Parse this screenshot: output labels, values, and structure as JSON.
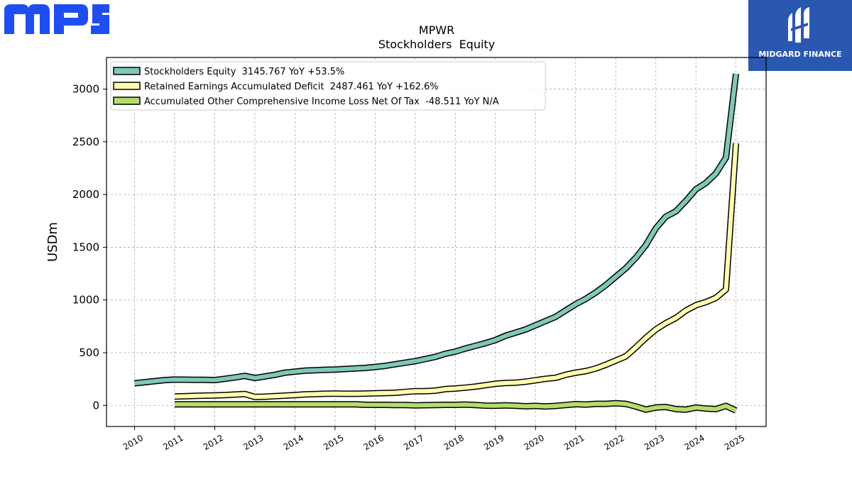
{
  "logos": {
    "left_text": "MPS",
    "left_color": "#1f4ef0",
    "right_text": "MIDGARD FINANCE",
    "right_bg": "#2a57b0"
  },
  "chart_data": {
    "type": "line",
    "title": "MPWR",
    "subtitle": "Stockholders  Equity",
    "ylabel": "USDm",
    "xlabel": "",
    "ylim": [
      -200,
      3300
    ],
    "xlim": [
      2009.3,
      2025.75
    ],
    "yticks": [
      0,
      500,
      1000,
      1500,
      2000,
      2500,
      3000
    ],
    "xticks": [
      "2010",
      "2011",
      "2012",
      "2013",
      "2014",
      "2015",
      "2016",
      "2017",
      "2018",
      "2019",
      "2020",
      "2021",
      "2022",
      "2023",
      "2024",
      "2025"
    ],
    "grid": true,
    "legend_position": "top-left",
    "series": [
      {
        "name": "Stockholders Equity  3145.767 YoY +53.5%",
        "color": "#7fc8b8",
        "points": [
          [
            2010.0,
            210
          ],
          [
            2010.25,
            220
          ],
          [
            2010.5,
            230
          ],
          [
            2010.75,
            240
          ],
          [
            2011.0,
            245
          ],
          [
            2011.25,
            244
          ],
          [
            2011.5,
            243
          ],
          [
            2011.75,
            242
          ],
          [
            2012.0,
            240
          ],
          [
            2012.25,
            252
          ],
          [
            2012.5,
            265
          ],
          [
            2012.75,
            280
          ],
          [
            2013.0,
            260
          ],
          [
            2013.25,
            275
          ],
          [
            2013.5,
            290
          ],
          [
            2013.75,
            310
          ],
          [
            2014.0,
            320
          ],
          [
            2014.25,
            330
          ],
          [
            2014.5,
            333
          ],
          [
            2014.75,
            338
          ],
          [
            2015.0,
            340
          ],
          [
            2015.25,
            345
          ],
          [
            2015.5,
            350
          ],
          [
            2015.75,
            355
          ],
          [
            2016.0,
            365
          ],
          [
            2016.25,
            375
          ],
          [
            2016.5,
            390
          ],
          [
            2016.75,
            405
          ],
          [
            2017.0,
            420
          ],
          [
            2017.25,
            440
          ],
          [
            2017.5,
            460
          ],
          [
            2017.75,
            490
          ],
          [
            2018.0,
            510
          ],
          [
            2018.25,
            540
          ],
          [
            2018.5,
            565
          ],
          [
            2018.75,
            590
          ],
          [
            2019.0,
            620
          ],
          [
            2019.25,
            660
          ],
          [
            2019.5,
            690
          ],
          [
            2019.75,
            720
          ],
          [
            2020.0,
            760
          ],
          [
            2020.25,
            800
          ],
          [
            2020.5,
            840
          ],
          [
            2020.75,
            900
          ],
          [
            2021.0,
            960
          ],
          [
            2021.25,
            1010
          ],
          [
            2021.5,
            1070
          ],
          [
            2021.75,
            1140
          ],
          [
            2022.0,
            1220
          ],
          [
            2022.25,
            1300
          ],
          [
            2022.5,
            1400
          ],
          [
            2022.75,
            1520
          ],
          [
            2023.0,
            1680
          ],
          [
            2023.25,
            1790
          ],
          [
            2023.5,
            1840
          ],
          [
            2023.75,
            1940
          ],
          [
            2024.0,
            2050
          ],
          [
            2024.25,
            2110
          ],
          [
            2024.5,
            2200
          ],
          [
            2024.75,
            2350
          ],
          [
            2025.0,
            3146
          ]
        ]
      },
      {
        "name": "Retained Earnings Accumulated Deficit  2487.461 YoY +162.6%",
        "color": "#fffcb0",
        "points": [
          [
            2011.0,
            85
          ],
          [
            2011.25,
            87
          ],
          [
            2011.5,
            90
          ],
          [
            2011.75,
            93
          ],
          [
            2012.0,
            95
          ],
          [
            2012.25,
            98
          ],
          [
            2012.5,
            103
          ],
          [
            2012.75,
            108
          ],
          [
            2013.0,
            80
          ],
          [
            2013.25,
            83
          ],
          [
            2013.5,
            88
          ],
          [
            2013.75,
            93
          ],
          [
            2014.0,
            98
          ],
          [
            2014.25,
            105
          ],
          [
            2014.5,
            107
          ],
          [
            2014.75,
            110
          ],
          [
            2015.0,
            112
          ],
          [
            2015.25,
            110
          ],
          [
            2015.5,
            110
          ],
          [
            2015.75,
            112
          ],
          [
            2016.0,
            115
          ],
          [
            2016.25,
            117
          ],
          [
            2016.5,
            120
          ],
          [
            2016.75,
            128
          ],
          [
            2017.0,
            135
          ],
          [
            2017.25,
            135
          ],
          [
            2017.5,
            140
          ],
          [
            2017.75,
            155
          ],
          [
            2018.0,
            160
          ],
          [
            2018.25,
            168
          ],
          [
            2018.5,
            178
          ],
          [
            2018.75,
            192
          ],
          [
            2019.0,
            205
          ],
          [
            2019.25,
            212
          ],
          [
            2019.5,
            215
          ],
          [
            2019.75,
            225
          ],
          [
            2020.0,
            238
          ],
          [
            2020.25,
            252
          ],
          [
            2020.5,
            262
          ],
          [
            2020.75,
            290
          ],
          [
            2021.0,
            310
          ],
          [
            2021.25,
            325
          ],
          [
            2021.5,
            350
          ],
          [
            2021.75,
            385
          ],
          [
            2022.0,
            425
          ],
          [
            2022.25,
            465
          ],
          [
            2022.5,
            550
          ],
          [
            2022.75,
            640
          ],
          [
            2023.0,
            720
          ],
          [
            2023.25,
            780
          ],
          [
            2023.5,
            830
          ],
          [
            2023.75,
            900
          ],
          [
            2024.0,
            950
          ],
          [
            2024.25,
            980
          ],
          [
            2024.5,
            1020
          ],
          [
            2024.75,
            1100
          ],
          [
            2025.0,
            2487
          ]
        ]
      },
      {
        "name": "Accumulated Other Comprehensive Income Loss Net Of Tax  -48.511 YoY N/A",
        "color": "#b4dd6e",
        "points": [
          [
            2011.0,
            10
          ],
          [
            2011.25,
            10
          ],
          [
            2011.5,
            10
          ],
          [
            2011.75,
            10
          ],
          [
            2012.0,
            10
          ],
          [
            2012.25,
            10
          ],
          [
            2012.5,
            10
          ],
          [
            2012.75,
            10
          ],
          [
            2013.0,
            10
          ],
          [
            2013.25,
            10
          ],
          [
            2013.5,
            10
          ],
          [
            2013.75,
            10
          ],
          [
            2014.0,
            10
          ],
          [
            2014.25,
            10
          ],
          [
            2014.5,
            10
          ],
          [
            2014.75,
            10
          ],
          [
            2015.0,
            10
          ],
          [
            2015.25,
            10
          ],
          [
            2015.5,
            10
          ],
          [
            2015.75,
            6
          ],
          [
            2016.0,
            5
          ],
          [
            2016.25,
            5
          ],
          [
            2016.5,
            4
          ],
          [
            2016.75,
            3
          ],
          [
            2017.0,
            0
          ],
          [
            2017.25,
            2
          ],
          [
            2017.5,
            4
          ],
          [
            2017.75,
            5
          ],
          [
            2018.0,
            5
          ],
          [
            2018.25,
            8
          ],
          [
            2018.5,
            3
          ],
          [
            2018.75,
            -2
          ],
          [
            2019.0,
            -3
          ],
          [
            2019.25,
            0
          ],
          [
            2019.5,
            -3
          ],
          [
            2019.75,
            -8
          ],
          [
            2020.0,
            -5
          ],
          [
            2020.25,
            -10
          ],
          [
            2020.5,
            -5
          ],
          [
            2020.75,
            3
          ],
          [
            2021.0,
            12
          ],
          [
            2021.25,
            8
          ],
          [
            2021.5,
            15
          ],
          [
            2021.75,
            15
          ],
          [
            2022.0,
            20
          ],
          [
            2022.25,
            15
          ],
          [
            2022.5,
            -10
          ],
          [
            2022.75,
            -40
          ],
          [
            2023.0,
            -20
          ],
          [
            2023.25,
            -15
          ],
          [
            2023.5,
            -35
          ],
          [
            2023.75,
            -40
          ],
          [
            2024.0,
            -20
          ],
          [
            2024.25,
            -30
          ],
          [
            2024.5,
            -35
          ],
          [
            2024.75,
            -5
          ],
          [
            2025.0,
            -49
          ]
        ]
      }
    ]
  }
}
